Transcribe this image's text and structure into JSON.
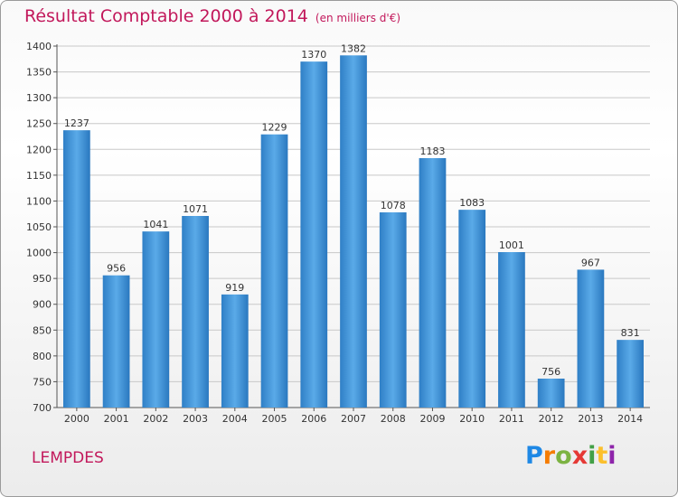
{
  "chart_data": {
    "type": "bar",
    "title": "Résultat Comptable 2000 à 2014",
    "unit_label": "(en milliers d'€)",
    "categories": [
      "2000",
      "2001",
      "2002",
      "2003",
      "2004",
      "2005",
      "2006",
      "2007",
      "2008",
      "2009",
      "2010",
      "2011",
      "2012",
      "2013",
      "2014"
    ],
    "values": [
      1237,
      956,
      1041,
      1071,
      919,
      1229,
      1370,
      1382,
      1078,
      1183,
      1083,
      1001,
      756,
      967,
      831
    ],
    "ylim": [
      700,
      1400
    ],
    "ytick_step": 50,
    "grid": true,
    "bar_color": "#3a8fd6",
    "bar_color_light": "#5aa9e6",
    "bar_color_dark": "#1f6fb8"
  },
  "footer": {
    "commune": "LEMPDES",
    "logo_letters": [
      "P",
      "r",
      "o",
      "x",
      "i",
      "t",
      "i"
    ]
  }
}
